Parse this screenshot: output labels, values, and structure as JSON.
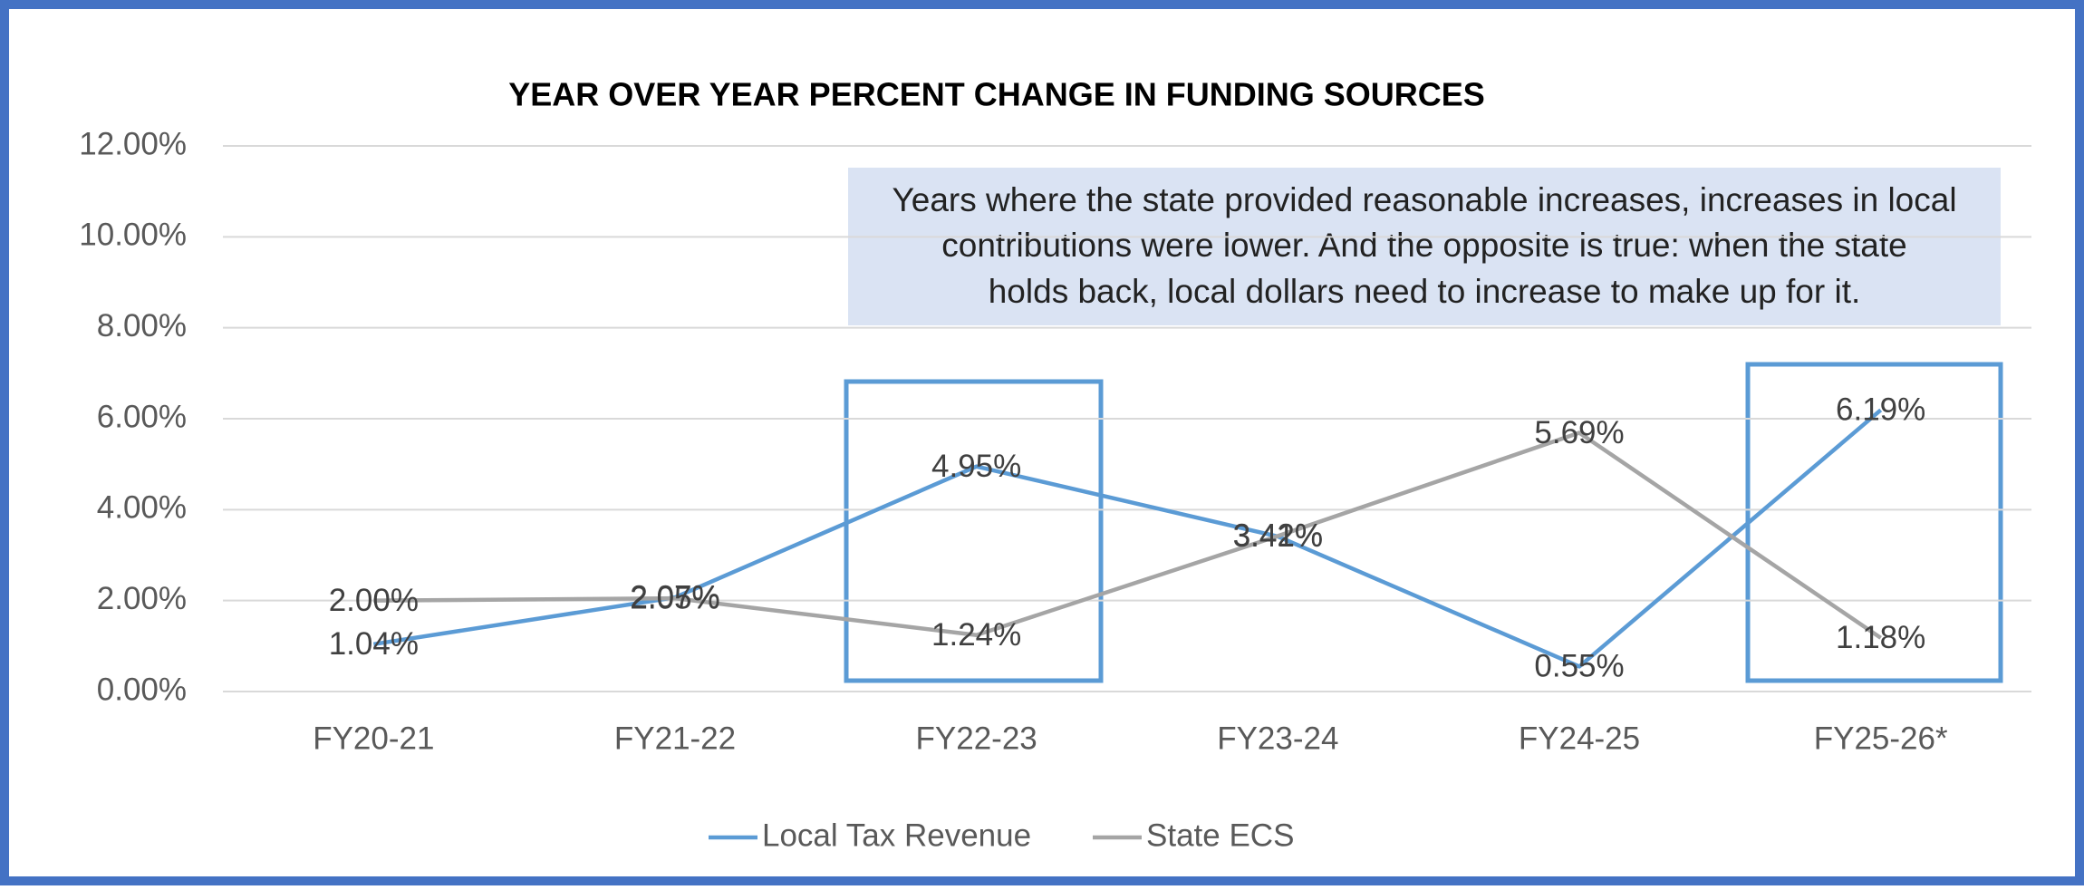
{
  "chart_data": {
    "type": "line",
    "title": "YEAR OVER YEAR PERCENT CHANGE IN FUNDING SOURCES",
    "annotation": [
      "Years where the state provided reasonable increases, increases in local",
      "contributions were lower. And the opposite is true: when the state",
      "holds back, local dollars need to increase to make up for it."
    ],
    "categories": [
      "FY20-21",
      "FY21-22",
      "FY22-23",
      "FY23-24",
      "FY24-25",
      "FY25-26*"
    ],
    "series": [
      {
        "name": "Local Tax Revenue",
        "color": "#5b9bd5",
        "values": [
          1.04,
          2.07,
          4.95,
          3.41,
          0.55,
          6.19
        ],
        "value_labels": [
          "1.04%",
          "2.07%",
          "4.95%",
          "3.41%",
          "0.55%",
          "6.19%"
        ]
      },
      {
        "name": "State ECS",
        "color": "#a5a5a5",
        "values": [
          2.0,
          2.05,
          1.24,
          3.42,
          5.69,
          1.18
        ],
        "value_labels": [
          "2.00%",
          "2.05%",
          "1.24%",
          "3.42%",
          "5.69%",
          "1.18%"
        ]
      }
    ],
    "ylim": [
      0,
      12
    ],
    "yticks": [
      {
        "value": 0,
        "label": "0.00%"
      },
      {
        "value": 2,
        "label": "2.00%"
      },
      {
        "value": 4,
        "label": "4.00%"
      },
      {
        "value": 6,
        "label": "6.00%"
      },
      {
        "value": 8,
        "label": "8.00%"
      },
      {
        "value": 10,
        "label": "10.00%"
      },
      {
        "value": 12,
        "label": "12.00%"
      }
    ],
    "grid": true,
    "legend": "bottom"
  }
}
